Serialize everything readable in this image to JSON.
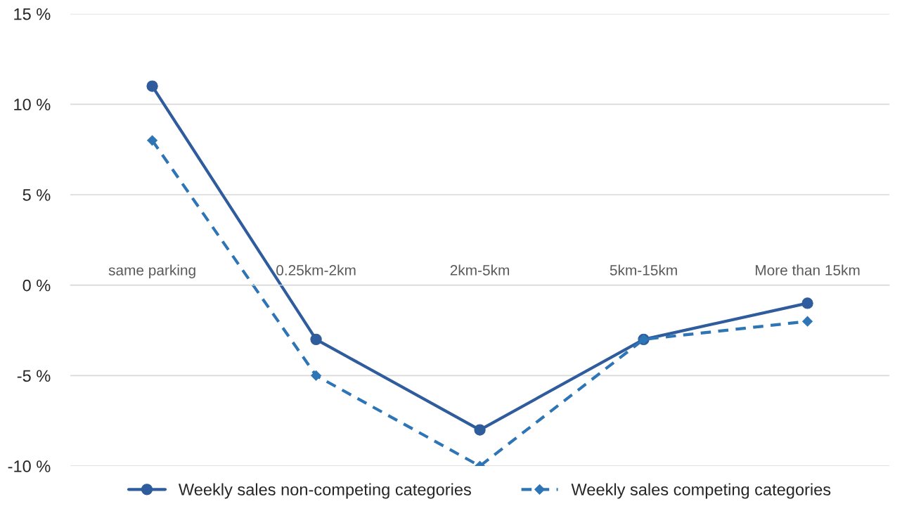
{
  "chart_data": {
    "type": "line",
    "categories": [
      "same parking",
      "0.25km-2km",
      "2km-5km",
      "5km-15km",
      "More than 15km"
    ],
    "series": [
      {
        "name": "Weekly sales non-competing categories",
        "color": "#2f5c9c",
        "values": [
          11,
          -3,
          -8,
          -3,
          -1
        ],
        "marker": "circle",
        "line_style": "solid"
      },
      {
        "name": "Weekly sales competing categories",
        "color": "#2e75b6",
        "values": [
          8,
          -5,
          -10,
          -3,
          -2
        ],
        "marker": "diamond",
        "line_style": "dashed"
      }
    ],
    "ylim": [
      -10,
      15
    ],
    "yticks": [
      {
        "value": -10,
        "label": "-10 %"
      },
      {
        "value": -5,
        "label": "-5 %"
      },
      {
        "value": 0,
        "label": "0 %"
      },
      {
        "value": 5,
        "label": "5 %"
      },
      {
        "value": 10,
        "label": "10 %"
      },
      {
        "value": 15,
        "label": "15 %"
      }
    ],
    "grid": "y",
    "legend": "bottom"
  }
}
